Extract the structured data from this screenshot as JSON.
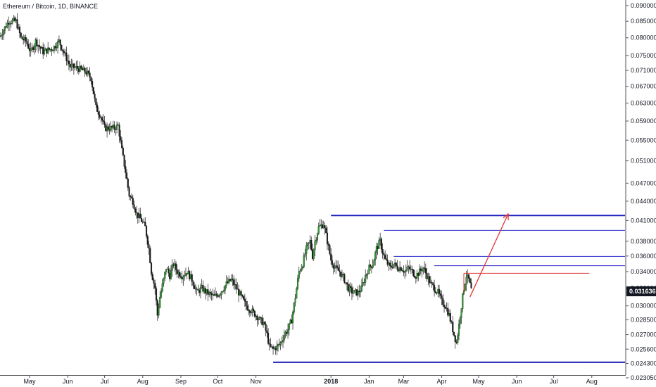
{
  "chart_data": {
    "type": "candlestick",
    "title": "Ethereum / Bitcoin, 1D, BINANCE",
    "y_axis": {
      "ticks": [
        "0.090000",
        "0.085000",
        "0.080000",
        "0.075000",
        "0.071000",
        "0.067000",
        "0.063000",
        "0.059000",
        "0.055000",
        "0.051000",
        "0.047000",
        "0.044000",
        "0.041000",
        "0.038000",
        "0.036000",
        "0.034000",
        "0.032000",
        "0.030000",
        "0.028500",
        "0.027000",
        "0.025600",
        "0.024300",
        "0.023050"
      ],
      "scale": "log",
      "range": [
        0.02305,
        0.09
      ]
    },
    "x_axis": {
      "ticks": [
        {
          "label": "May",
          "date": "2017-05-01",
          "bold": false
        },
        {
          "label": "Jun",
          "date": "2017-06-01",
          "bold": false
        },
        {
          "label": "Jul",
          "date": "2017-07-01",
          "bold": false
        },
        {
          "label": "Aug",
          "date": "2017-08-01",
          "bold": false
        },
        {
          "label": "Sep",
          "date": "2017-09-01",
          "bold": false
        },
        {
          "label": "Oct",
          "date": "2017-10-01",
          "bold": false
        },
        {
          "label": "Nov",
          "date": "2017-11-01",
          "bold": false
        },
        {
          "label": "2018",
          "date": "2018-01-01",
          "bold": true
        },
        {
          "label": "Jan",
          "date": "2018-02-01",
          "bold": false
        },
        {
          "label": "Mar",
          "date": "2018-03-01",
          "bold": false
        },
        {
          "label": "Apr",
          "date": "2018-04-01",
          "bold": false
        },
        {
          "label": "May",
          "date": "2018-05-01",
          "bold": false
        },
        {
          "label": "Jun",
          "date": "2018-06-01",
          "bold": false
        },
        {
          "label": "Jul",
          "date": "2018-07-01",
          "bold": false
        },
        {
          "label": "Aug",
          "date": "2018-08-01",
          "bold": false
        }
      ],
      "range": [
        "2017-04-07",
        "2018-08-28"
      ]
    },
    "price_path": [
      [
        "2017-04-07",
        0.0805
      ],
      [
        "2017-04-14",
        0.085
      ],
      [
        "2017-04-20",
        0.085
      ],
      [
        "2017-04-24",
        0.08
      ],
      [
        "2017-04-28",
        0.079
      ],
      [
        "2017-05-02",
        0.076
      ],
      [
        "2017-05-06",
        0.079
      ],
      [
        "2017-05-12",
        0.076
      ],
      [
        "2017-05-20",
        0.077
      ],
      [
        "2017-05-25",
        0.079
      ],
      [
        "2017-05-30",
        0.075
      ],
      [
        "2017-06-03",
        0.072
      ],
      [
        "2017-06-10",
        0.0715
      ],
      [
        "2017-06-16",
        0.0705
      ],
      [
        "2017-06-20",
        0.069
      ],
      [
        "2017-06-24",
        0.062
      ],
      [
        "2017-06-28",
        0.06
      ],
      [
        "2017-07-01",
        0.0575
      ],
      [
        "2017-07-05",
        0.0575
      ],
      [
        "2017-07-09",
        0.0575
      ],
      [
        "2017-07-12",
        0.058
      ],
      [
        "2017-07-15",
        0.053
      ],
      [
        "2017-07-18",
        0.049
      ],
      [
        "2017-07-21",
        0.045
      ],
      [
        "2017-07-24",
        0.044
      ],
      [
        "2017-07-27",
        0.042
      ],
      [
        "2017-07-31",
        0.041
      ],
      [
        "2017-08-03",
        0.04
      ],
      [
        "2017-08-06",
        0.037
      ],
      [
        "2017-08-08",
        0.034
      ],
      [
        "2017-08-11",
        0.032
      ],
      [
        "2017-08-13",
        0.029
      ],
      [
        "2017-08-15",
        0.031
      ],
      [
        "2017-08-18",
        0.033
      ],
      [
        "2017-08-20",
        0.0345
      ],
      [
        "2017-08-23",
        0.0335
      ],
      [
        "2017-08-26",
        0.035
      ],
      [
        "2017-08-29",
        0.034
      ],
      [
        "2017-09-02",
        0.0335
      ],
      [
        "2017-09-06",
        0.034
      ],
      [
        "2017-09-10",
        0.033
      ],
      [
        "2017-09-14",
        0.0315
      ],
      [
        "2017-09-18",
        0.032
      ],
      [
        "2017-09-22",
        0.0315
      ],
      [
        "2017-09-28",
        0.031
      ],
      [
        "2017-10-03",
        0.0315
      ],
      [
        "2017-10-08",
        0.0325
      ],
      [
        "2017-10-12",
        0.033
      ],
      [
        "2017-10-16",
        0.032
      ],
      [
        "2017-10-20",
        0.031
      ],
      [
        "2017-10-24",
        0.03
      ],
      [
        "2017-10-28",
        0.0295
      ],
      [
        "2017-11-01",
        0.029
      ],
      [
        "2017-11-04",
        0.0285
      ],
      [
        "2017-11-07",
        0.0282
      ],
      [
        "2017-11-10",
        0.027
      ],
      [
        "2017-11-12",
        0.0258
      ],
      [
        "2017-11-15",
        0.0256
      ],
      [
        "2017-11-18",
        0.0258
      ],
      [
        "2017-11-21",
        0.0262
      ],
      [
        "2017-11-24",
        0.027
      ],
      [
        "2017-11-27",
        0.0275
      ],
      [
        "2017-11-30",
        0.0285
      ],
      [
        "2017-12-03",
        0.031
      ],
      [
        "2017-12-06",
        0.034
      ],
      [
        "2017-12-09",
        0.035
      ],
      [
        "2017-12-12",
        0.037
      ],
      [
        "2017-12-15",
        0.038
      ],
      [
        "2017-12-17",
        0.036
      ],
      [
        "2017-12-19",
        0.038
      ],
      [
        "2017-12-22",
        0.04
      ],
      [
        "2017-12-26",
        0.0405
      ],
      [
        "2017-12-29",
        0.038
      ],
      [
        "2018-01-01",
        0.0355
      ],
      [
        "2018-01-04",
        0.0345
      ],
      [
        "2018-01-08",
        0.034
      ],
      [
        "2018-01-12",
        0.033
      ],
      [
        "2018-01-15",
        0.032
      ],
      [
        "2018-01-19",
        0.0315
      ],
      [
        "2018-01-23",
        0.0315
      ],
      [
        "2018-01-26",
        0.032
      ],
      [
        "2018-01-29",
        0.0335
      ],
      [
        "2018-02-01",
        0.0345
      ],
      [
        "2018-02-04",
        0.035
      ],
      [
        "2018-02-07",
        0.037
      ],
      [
        "2018-02-10",
        0.038
      ],
      [
        "2018-02-12",
        0.0365
      ],
      [
        "2018-02-14",
        0.0355
      ],
      [
        "2018-02-16",
        0.035
      ],
      [
        "2018-02-18",
        0.0345
      ],
      [
        "2018-02-21",
        0.035
      ],
      [
        "2018-02-24",
        0.0345
      ],
      [
        "2018-02-27",
        0.0345
      ],
      [
        "2018-03-02",
        0.034
      ],
      [
        "2018-03-05",
        0.0345
      ],
      [
        "2018-03-08",
        0.034
      ],
      [
        "2018-03-11",
        0.0335
      ],
      [
        "2018-03-14",
        0.034
      ],
      [
        "2018-03-17",
        0.0345
      ],
      [
        "2018-03-20",
        0.0335
      ],
      [
        "2018-03-23",
        0.0325
      ],
      [
        "2018-03-26",
        0.032
      ],
      [
        "2018-03-29",
        0.0315
      ],
      [
        "2018-04-01",
        0.0305
      ],
      [
        "2018-04-04",
        0.03
      ],
      [
        "2018-04-07",
        0.029
      ],
      [
        "2018-04-09",
        0.028
      ],
      [
        "2018-04-11",
        0.027
      ],
      [
        "2018-04-13",
        0.0262
      ],
      [
        "2018-04-15",
        0.028
      ],
      [
        "2018-04-17",
        0.03
      ],
      [
        "2018-04-19",
        0.032
      ],
      [
        "2018-04-21",
        0.0335
      ],
      [
        "2018-04-23",
        0.033
      ],
      [
        "2018-04-25",
        0.0318
      ]
    ],
    "annotations": {
      "horizontal_lines": [
        {
          "price": 0.0244,
          "from": "2017-11-15",
          "to": "2018-08-28",
          "color": "#1f1fbf",
          "width": 2
        },
        {
          "price": 0.04175,
          "from": "2018-01-01",
          "to": "2018-08-28",
          "color": "#1f1fbf",
          "width": 2
        },
        {
          "price": 0.03955,
          "from": "2018-02-13",
          "to": "2018-08-28",
          "color": "#2929c9",
          "width": 1
        },
        {
          "price": 0.03595,
          "from": "2018-02-21",
          "to": "2018-08-28",
          "color": "#2929c9",
          "width": 1
        },
        {
          "price": 0.03475,
          "from": "2018-03-26",
          "to": "2018-08-28",
          "color": "#2929c9",
          "width": 1
        },
        {
          "price": 0.0338,
          "from": "2018-04-19",
          "to": "2018-07-30",
          "color": "#e03535",
          "width": 1
        }
      ],
      "vertical_lines": [
        {
          "date": "2018-04-19",
          "from_price": 0.0338,
          "to_price": 0.0315,
          "color": "#e03535"
        }
      ],
      "arrows": [
        {
          "from": [
            "2018-04-24",
            0.031
          ],
          "to": [
            "2018-05-25",
            0.042
          ],
          "color": "#e03535"
        }
      ]
    },
    "last_price": {
      "value": "0.031636",
      "color": "#131722"
    },
    "colors": {
      "up": "#2ca02c",
      "down": "#1a1a1a",
      "background": "#ffffff",
      "axis": "#131722"
    }
  }
}
